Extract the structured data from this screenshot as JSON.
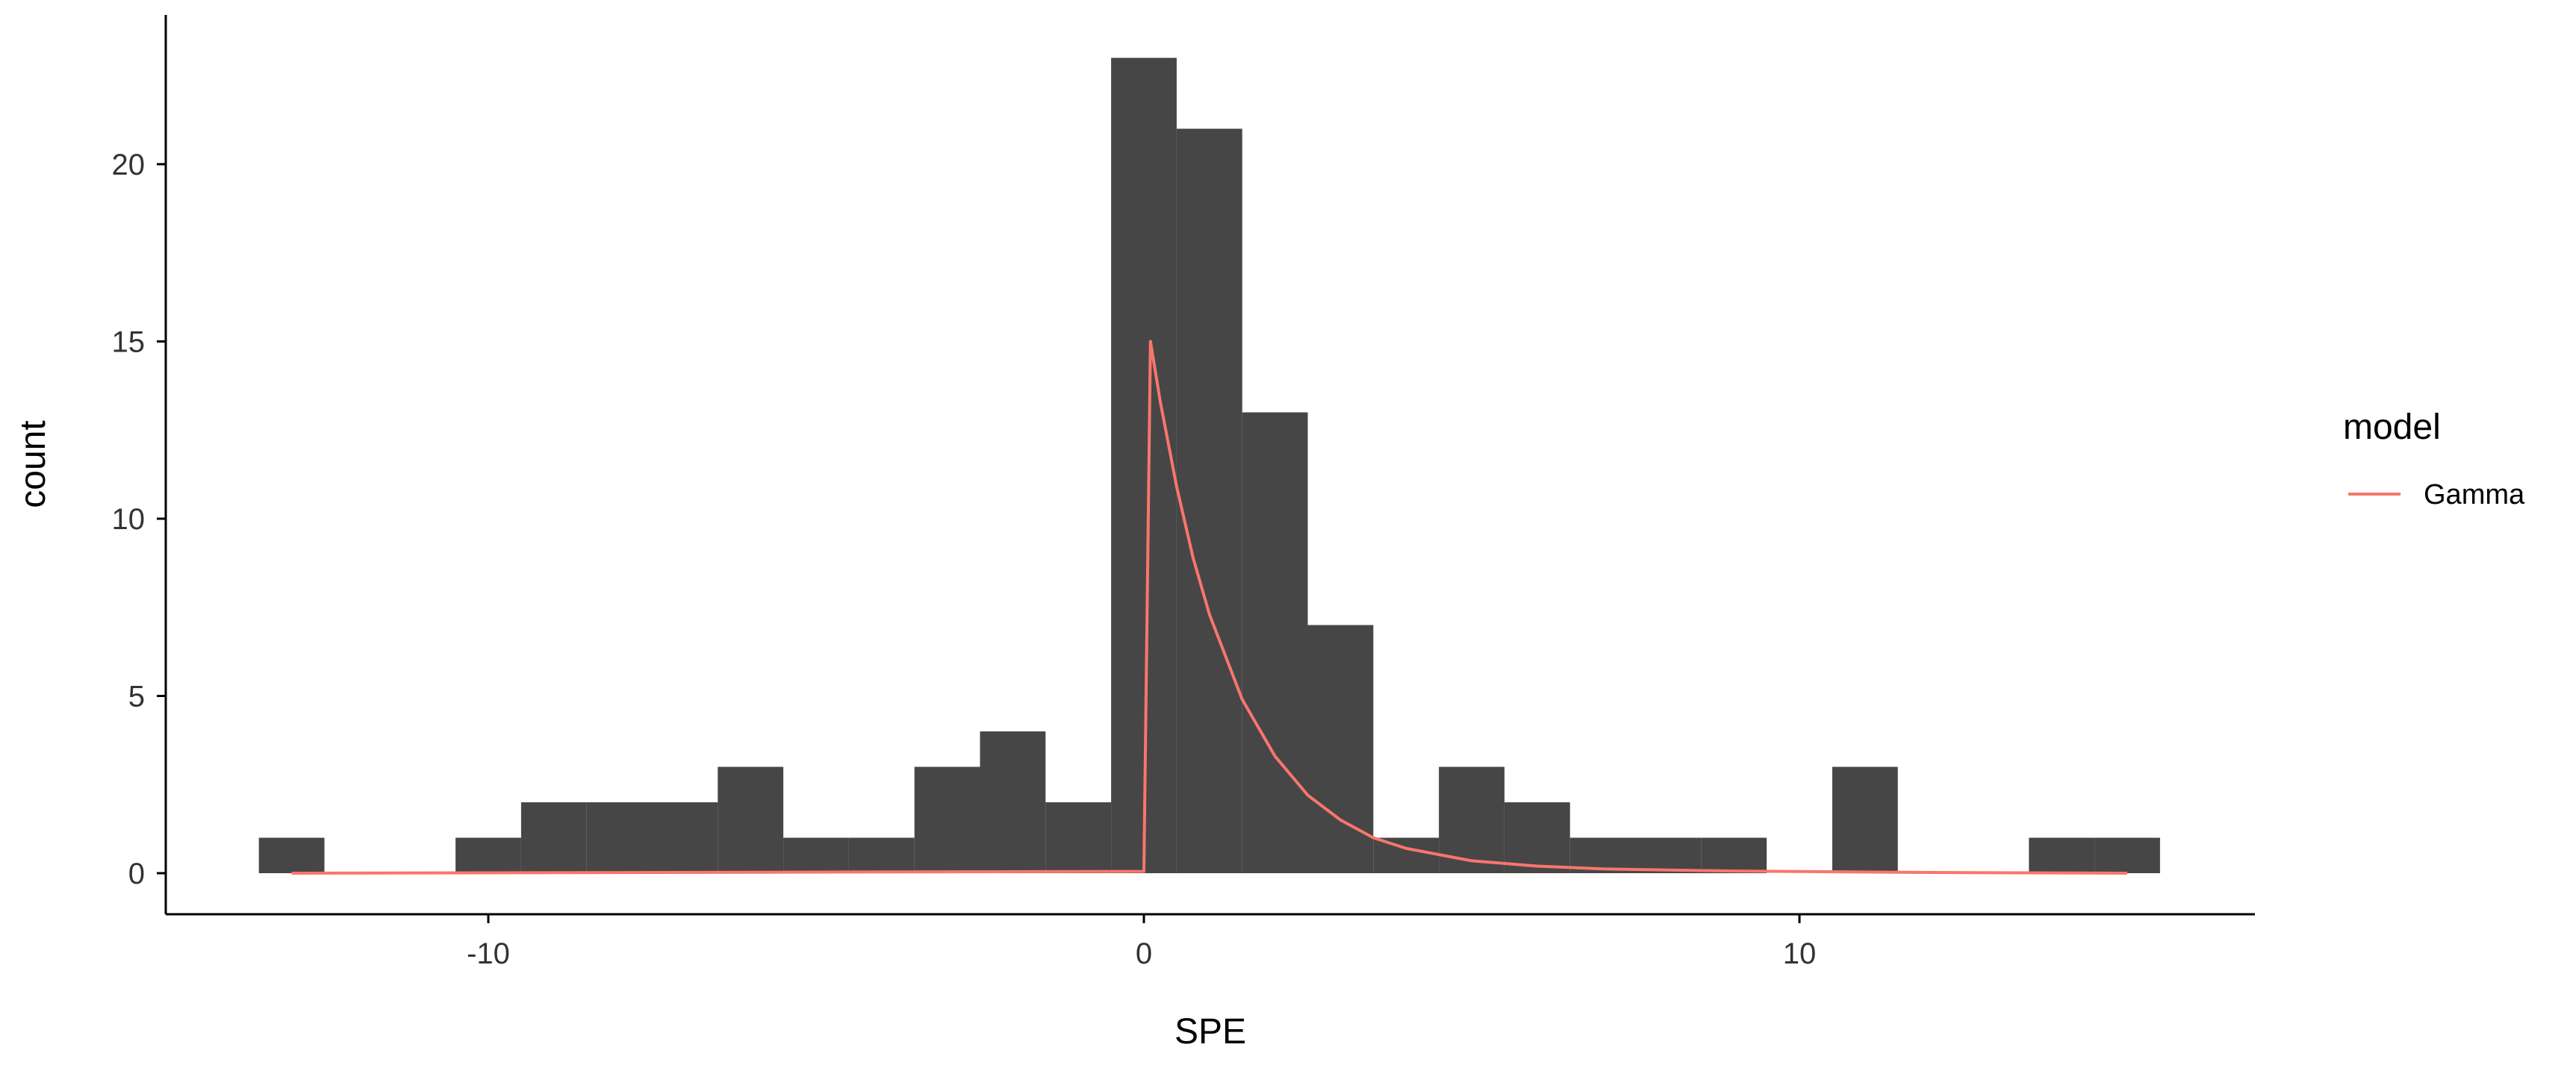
{
  "colors": {
    "bar": "#464646",
    "gamma_line": "#F8766D",
    "axis": "#000000",
    "tick_text": "#333333"
  },
  "chart_data": {
    "type": "bar",
    "subtype": "histogram",
    "xlabel": "SPE",
    "ylabel": "count",
    "xlim": [
      -15.5,
      17
    ],
    "ylim": [
      0,
      24
    ],
    "x_ticks": [
      -10,
      0,
      10
    ],
    "x_tick_labels": [
      "-10",
      "0",
      "10"
    ],
    "y_ticks": [
      0,
      5,
      10,
      15,
      20
    ],
    "y_tick_labels": [
      "0",
      "5",
      "10",
      "15",
      "20"
    ],
    "grid": false,
    "bin_width": 1,
    "bins": [
      {
        "x0": -13.5,
        "x1": -12.5,
        "count": 1
      },
      {
        "x0": -12.5,
        "x1": -11.5,
        "count": 0
      },
      {
        "x0": -11.5,
        "x1": -10.5,
        "count": 0
      },
      {
        "x0": -10.5,
        "x1": -9.5,
        "count": 1
      },
      {
        "x0": -9.5,
        "x1": -8.5,
        "count": 2
      },
      {
        "x0": -8.5,
        "x1": -7.5,
        "count": 2
      },
      {
        "x0": -7.5,
        "x1": -6.5,
        "count": 2
      },
      {
        "x0": -6.5,
        "x1": -5.5,
        "count": 3
      },
      {
        "x0": -5.5,
        "x1": -4.5,
        "count": 1
      },
      {
        "x0": -4.5,
        "x1": -3.5,
        "count": 1
      },
      {
        "x0": -3.5,
        "x1": -2.5,
        "count": 3
      },
      {
        "x0": -2.5,
        "x1": -1.5,
        "count": 4
      },
      {
        "x0": -1.5,
        "x1": -0.5,
        "count": 2
      },
      {
        "x0": -0.5,
        "x1": 0.5,
        "count": 23
      },
      {
        "x0": 0.5,
        "x1": 1.5,
        "count": 21
      },
      {
        "x0": 1.5,
        "x1": 2.5,
        "count": 13
      },
      {
        "x0": 2.5,
        "x1": 3.5,
        "count": 7
      },
      {
        "x0": 3.5,
        "x1": 4.5,
        "count": 1
      },
      {
        "x0": 4.5,
        "x1": 5.5,
        "count": 3
      },
      {
        "x0": 5.5,
        "x1": 6.5,
        "count": 2
      },
      {
        "x0": 6.5,
        "x1": 7.5,
        "count": 1
      },
      {
        "x0": 7.5,
        "x1": 8.5,
        "count": 1
      },
      {
        "x0": 8.5,
        "x1": 9.5,
        "count": 1
      },
      {
        "x0": 9.5,
        "x1": 10.5,
        "count": 0
      },
      {
        "x0": 10.5,
        "x1": 11.5,
        "count": 3
      },
      {
        "x0": 11.5,
        "x1": 12.5,
        "count": 0
      },
      {
        "x0": 12.5,
        "x1": 13.5,
        "count": 0
      },
      {
        "x0": 13.5,
        "x1": 14.5,
        "count": 1
      },
      {
        "x0": 14.5,
        "x1": 15.5,
        "count": 1
      }
    ],
    "series": [
      {
        "name": "Gamma",
        "type": "line",
        "x": [
          -13,
          -0.1,
          0,
          0.1,
          0.25,
          0.5,
          0.75,
          1,
          1.5,
          2,
          2.5,
          3,
          3.5,
          4,
          5,
          6,
          7,
          9,
          12,
          15
        ],
        "y": [
          0,
          0.05,
          0.05,
          15,
          13.3,
          10.9,
          8.9,
          7.3,
          4.9,
          3.3,
          2.2,
          1.5,
          1.0,
          0.7,
          0.35,
          0.2,
          0.12,
          0.06,
          0.02,
          0
        ]
      }
    ],
    "legend": {
      "title": "model",
      "position": "right",
      "entries": [
        "Gamma"
      ]
    }
  }
}
